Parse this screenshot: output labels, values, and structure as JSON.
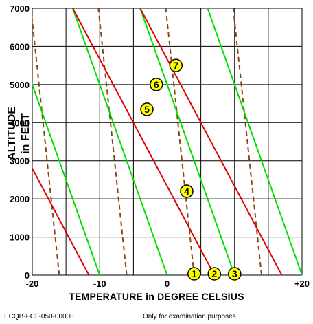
{
  "chart_data": {
    "type": "line",
    "xlabel": "TEMPERATURE in DEGREE CELSIUS",
    "ylabel_line1": "ALTITUDE",
    "ylabel_line2": "in FEET",
    "xlim": [
      -20,
      20
    ],
    "ylim": [
      0,
      7000
    ],
    "x_ticks": [
      {
        "value": -20,
        "label": "-20"
      },
      {
        "value": -10,
        "label": "-10"
      },
      {
        "value": 0,
        "label": "0"
      },
      {
        "value": 20,
        "label": "+20"
      }
    ],
    "y_ticks": [
      {
        "value": 0,
        "label": "0"
      },
      {
        "value": 1000,
        "label": "1000"
      },
      {
        "value": 2000,
        "label": "2000"
      },
      {
        "value": 3000,
        "label": "3000"
      },
      {
        "value": 4000,
        "label": "4000"
      },
      {
        "value": 5000,
        "label": "5000"
      },
      {
        "value": 6000,
        "label": "6000"
      },
      {
        "value": 7000,
        "label": "7000"
      }
    ],
    "grid": true,
    "colors": {
      "red": "#e00000",
      "green": "#00e000",
      "dashed": "#8b4513",
      "marker_fill": "#ffff00"
    },
    "red_lines": [
      {
        "x0": -11.6,
        "slope_per_1000ft": -3.0
      },
      {
        "x0": 7.0,
        "slope_per_1000ft": -3.0
      },
      {
        "x0": 17.0,
        "slope_per_1000ft": -3.0
      }
    ],
    "green_lines": [
      {
        "x0": -10.0,
        "slope_per_1000ft": -2.0
      },
      {
        "x0": 0.0,
        "slope_per_1000ft": -2.0
      },
      {
        "x0": 10.0,
        "slope_per_1000ft": -2.0
      },
      {
        "x0": 20.0,
        "slope_per_1000ft": -2.0
      }
    ],
    "dashed_lines": [
      {
        "x0": -16.0,
        "slope_per_1000ft": -0.6
      },
      {
        "x0": -6.0,
        "slope_per_1000ft": -0.6
      },
      {
        "x0": 4.0,
        "slope_per_1000ft": -0.6
      },
      {
        "x0": 14.0,
        "slope_per_1000ft": -0.6
      }
    ],
    "markers": [
      {
        "label": "1",
        "x": 4.0,
        "y": 0
      },
      {
        "label": "2",
        "x": 7.0,
        "y": 0
      },
      {
        "label": "3",
        "x": 10.0,
        "y": 0
      },
      {
        "label": "4",
        "x": 2.9,
        "y": 2200
      },
      {
        "label": "5",
        "x": -3.0,
        "y": 4350
      },
      {
        "label": "6",
        "x": -1.6,
        "y": 5000
      },
      {
        "label": "7",
        "x": 1.3,
        "y": 5500
      }
    ]
  },
  "footer": {
    "code": "ECQB-FCL-050-00008",
    "note": "Only for examination purposes"
  }
}
